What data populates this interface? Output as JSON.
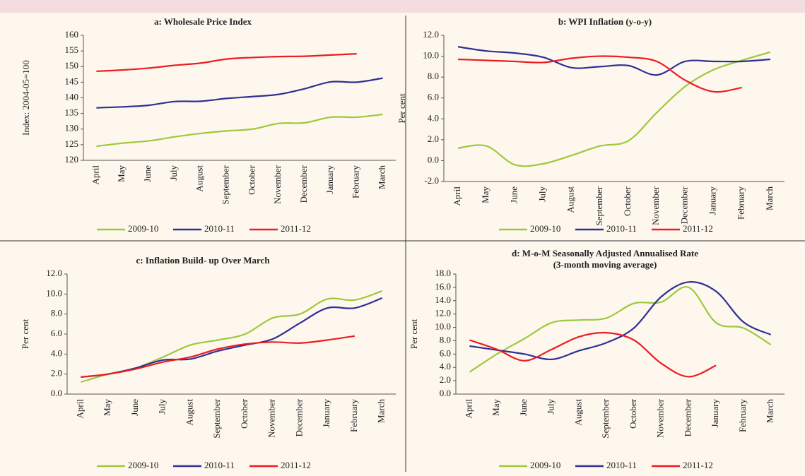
{
  "chart_data": [
    {
      "type": "line",
      "title": "a: Wholesale Price Index",
      "y_label": "Index: 2004-05=100",
      "legend": "bottom",
      "categories": [
        "April",
        "May",
        "June",
        "July",
        "August",
        "September",
        "October",
        "November",
        "December",
        "January",
        "February",
        "March"
      ],
      "ylim": [
        120,
        160
      ],
      "yticks": [
        120,
        125,
        130,
        135,
        140,
        145,
        150,
        155,
        160
      ],
      "series": [
        {
          "name": "2009-10",
          "color": "#9dc93c",
          "values": [
            124.5,
            125.5,
            126.2,
            127.5,
            128.6,
            129.4,
            130.0,
            131.8,
            132.0,
            133.8,
            133.8,
            134.7
          ]
        },
        {
          "name": "2010-11",
          "color": "#2e3192",
          "values": [
            136.8,
            137.1,
            137.6,
            138.8,
            138.9,
            139.8,
            140.4,
            141.1,
            142.9,
            145.1,
            145.0,
            146.3
          ]
        },
        {
          "name": "2011-12",
          "color": "#ed1c24",
          "values": [
            148.5,
            148.9,
            149.5,
            150.4,
            151.1,
            152.4,
            152.9,
            153.2,
            153.3,
            153.7,
            154.1,
            null
          ]
        }
      ]
    },
    {
      "type": "line",
      "title": "b: WPI Inflation (y-o-y)",
      "y_label": "Per cent",
      "legend": "bottom",
      "categories": [
        "April",
        "May",
        "June",
        "July",
        "August",
        "September",
        "October",
        "November",
        "December",
        "January",
        "February",
        "March"
      ],
      "ylim": [
        -2,
        12
      ],
      "yticks": [
        {
          "value": -2,
          "label": "-2.0"
        },
        {
          "value": 0,
          "label": "0.0"
        },
        {
          "value": 2,
          "label": "2.0"
        },
        {
          "value": 4,
          "label": "4.0"
        },
        {
          "value": 6,
          "label": "6.0"
        },
        {
          "value": 8,
          "label": "8.0"
        },
        {
          "value": 10,
          "label": "10.0"
        },
        {
          "value": 12,
          "label": "12.0"
        }
      ],
      "series": [
        {
          "name": "2009-10",
          "color": "#9dc93c",
          "values": [
            1.2,
            1.4,
            -0.4,
            -0.3,
            0.5,
            1.4,
            1.9,
            4.6,
            7.1,
            8.7,
            9.6,
            10.4
          ]
        },
        {
          "name": "2010-11",
          "color": "#2e3192",
          "values": [
            10.9,
            10.5,
            10.3,
            9.9,
            8.9,
            9.0,
            9.1,
            8.2,
            9.5,
            9.5,
            9.5,
            9.7
          ]
        },
        {
          "name": "2011-12",
          "color": "#ed1c24",
          "values": [
            9.7,
            9.6,
            9.5,
            9.4,
            9.8,
            10.0,
            9.9,
            9.5,
            7.7,
            6.6,
            7.0,
            null
          ]
        }
      ]
    },
    {
      "type": "line",
      "title": "c: Inflation Build- up Over March",
      "y_label": "Per cent",
      "legend": "bottom",
      "categories": [
        "April",
        "May",
        "June",
        "July",
        "August",
        "September",
        "October",
        "November",
        "December",
        "January",
        "February",
        "March"
      ],
      "ylim": [
        0,
        12
      ],
      "yticks": [
        {
          "value": 0,
          "label": "0.0"
        },
        {
          "value": 2,
          "label": "2.0"
        },
        {
          "value": 4,
          "label": "4.0"
        },
        {
          "value": 6,
          "label": "6.0"
        },
        {
          "value": 8,
          "label": "8.0"
        },
        {
          "value": 10,
          "label": "10.0"
        },
        {
          "value": 12,
          "label": "12.0"
        }
      ],
      "series": [
        {
          "name": "2009-10",
          "color": "#9dc93c",
          "values": [
            1.2,
            2.0,
            2.6,
            3.7,
            4.9,
            5.4,
            6.0,
            7.6,
            8.0,
            9.5,
            9.4,
            10.3
          ]
        },
        {
          "name": "2010-11",
          "color": "#2e3192",
          "values": [
            1.7,
            2.0,
            2.6,
            3.4,
            3.5,
            4.3,
            4.9,
            5.5,
            7.1,
            8.6,
            8.6,
            9.6
          ]
        },
        {
          "name": "2011-12",
          "color": "#ed1c24",
          "values": [
            1.7,
            2.0,
            2.5,
            3.2,
            3.7,
            4.5,
            5.0,
            5.2,
            5.1,
            5.4,
            5.8,
            null
          ]
        }
      ]
    },
    {
      "type": "line",
      "title": "d: M-o-M Seasonally Adjusted Annualised Rate",
      "subtitle": "(3-month moving average)",
      "y_label": "Per cent",
      "legend": "bottom",
      "categories": [
        "April",
        "May",
        "June",
        "July",
        "August",
        "September",
        "October",
        "November",
        "December",
        "January",
        "February",
        "March"
      ],
      "ylim": [
        0,
        18
      ],
      "yticks": [
        {
          "value": 0,
          "label": "0.0"
        },
        {
          "value": 2,
          "label": "2.0"
        },
        {
          "value": 4,
          "label": "4.0"
        },
        {
          "value": 6,
          "label": "6.0"
        },
        {
          "value": 8,
          "label": "8.0"
        },
        {
          "value": 10,
          "label": "10.0"
        },
        {
          "value": 12,
          "label": "12.0"
        },
        {
          "value": 14,
          "label": "14.0"
        },
        {
          "value": 16,
          "label": "16.0"
        },
        {
          "value": 18,
          "label": "18.0"
        }
      ],
      "series": [
        {
          "name": "2009-10",
          "color": "#9dc93c",
          "values": [
            3.3,
            6.0,
            8.3,
            10.7,
            11.1,
            11.4,
            13.6,
            13.8,
            16.0,
            10.7,
            9.9,
            7.4
          ]
        },
        {
          "name": "2010-11",
          "color": "#2e3192",
          "values": [
            7.2,
            6.6,
            6.0,
            5.2,
            6.5,
            7.7,
            9.9,
            14.6,
            16.8,
            15.4,
            10.8,
            8.9
          ]
        },
        {
          "name": "2011-12",
          "color": "#ed1c24",
          "values": [
            8.1,
            6.7,
            5.0,
            6.7,
            8.6,
            9.2,
            8.1,
            4.6,
            2.6,
            4.3,
            null,
            null
          ]
        }
      ]
    }
  ]
}
